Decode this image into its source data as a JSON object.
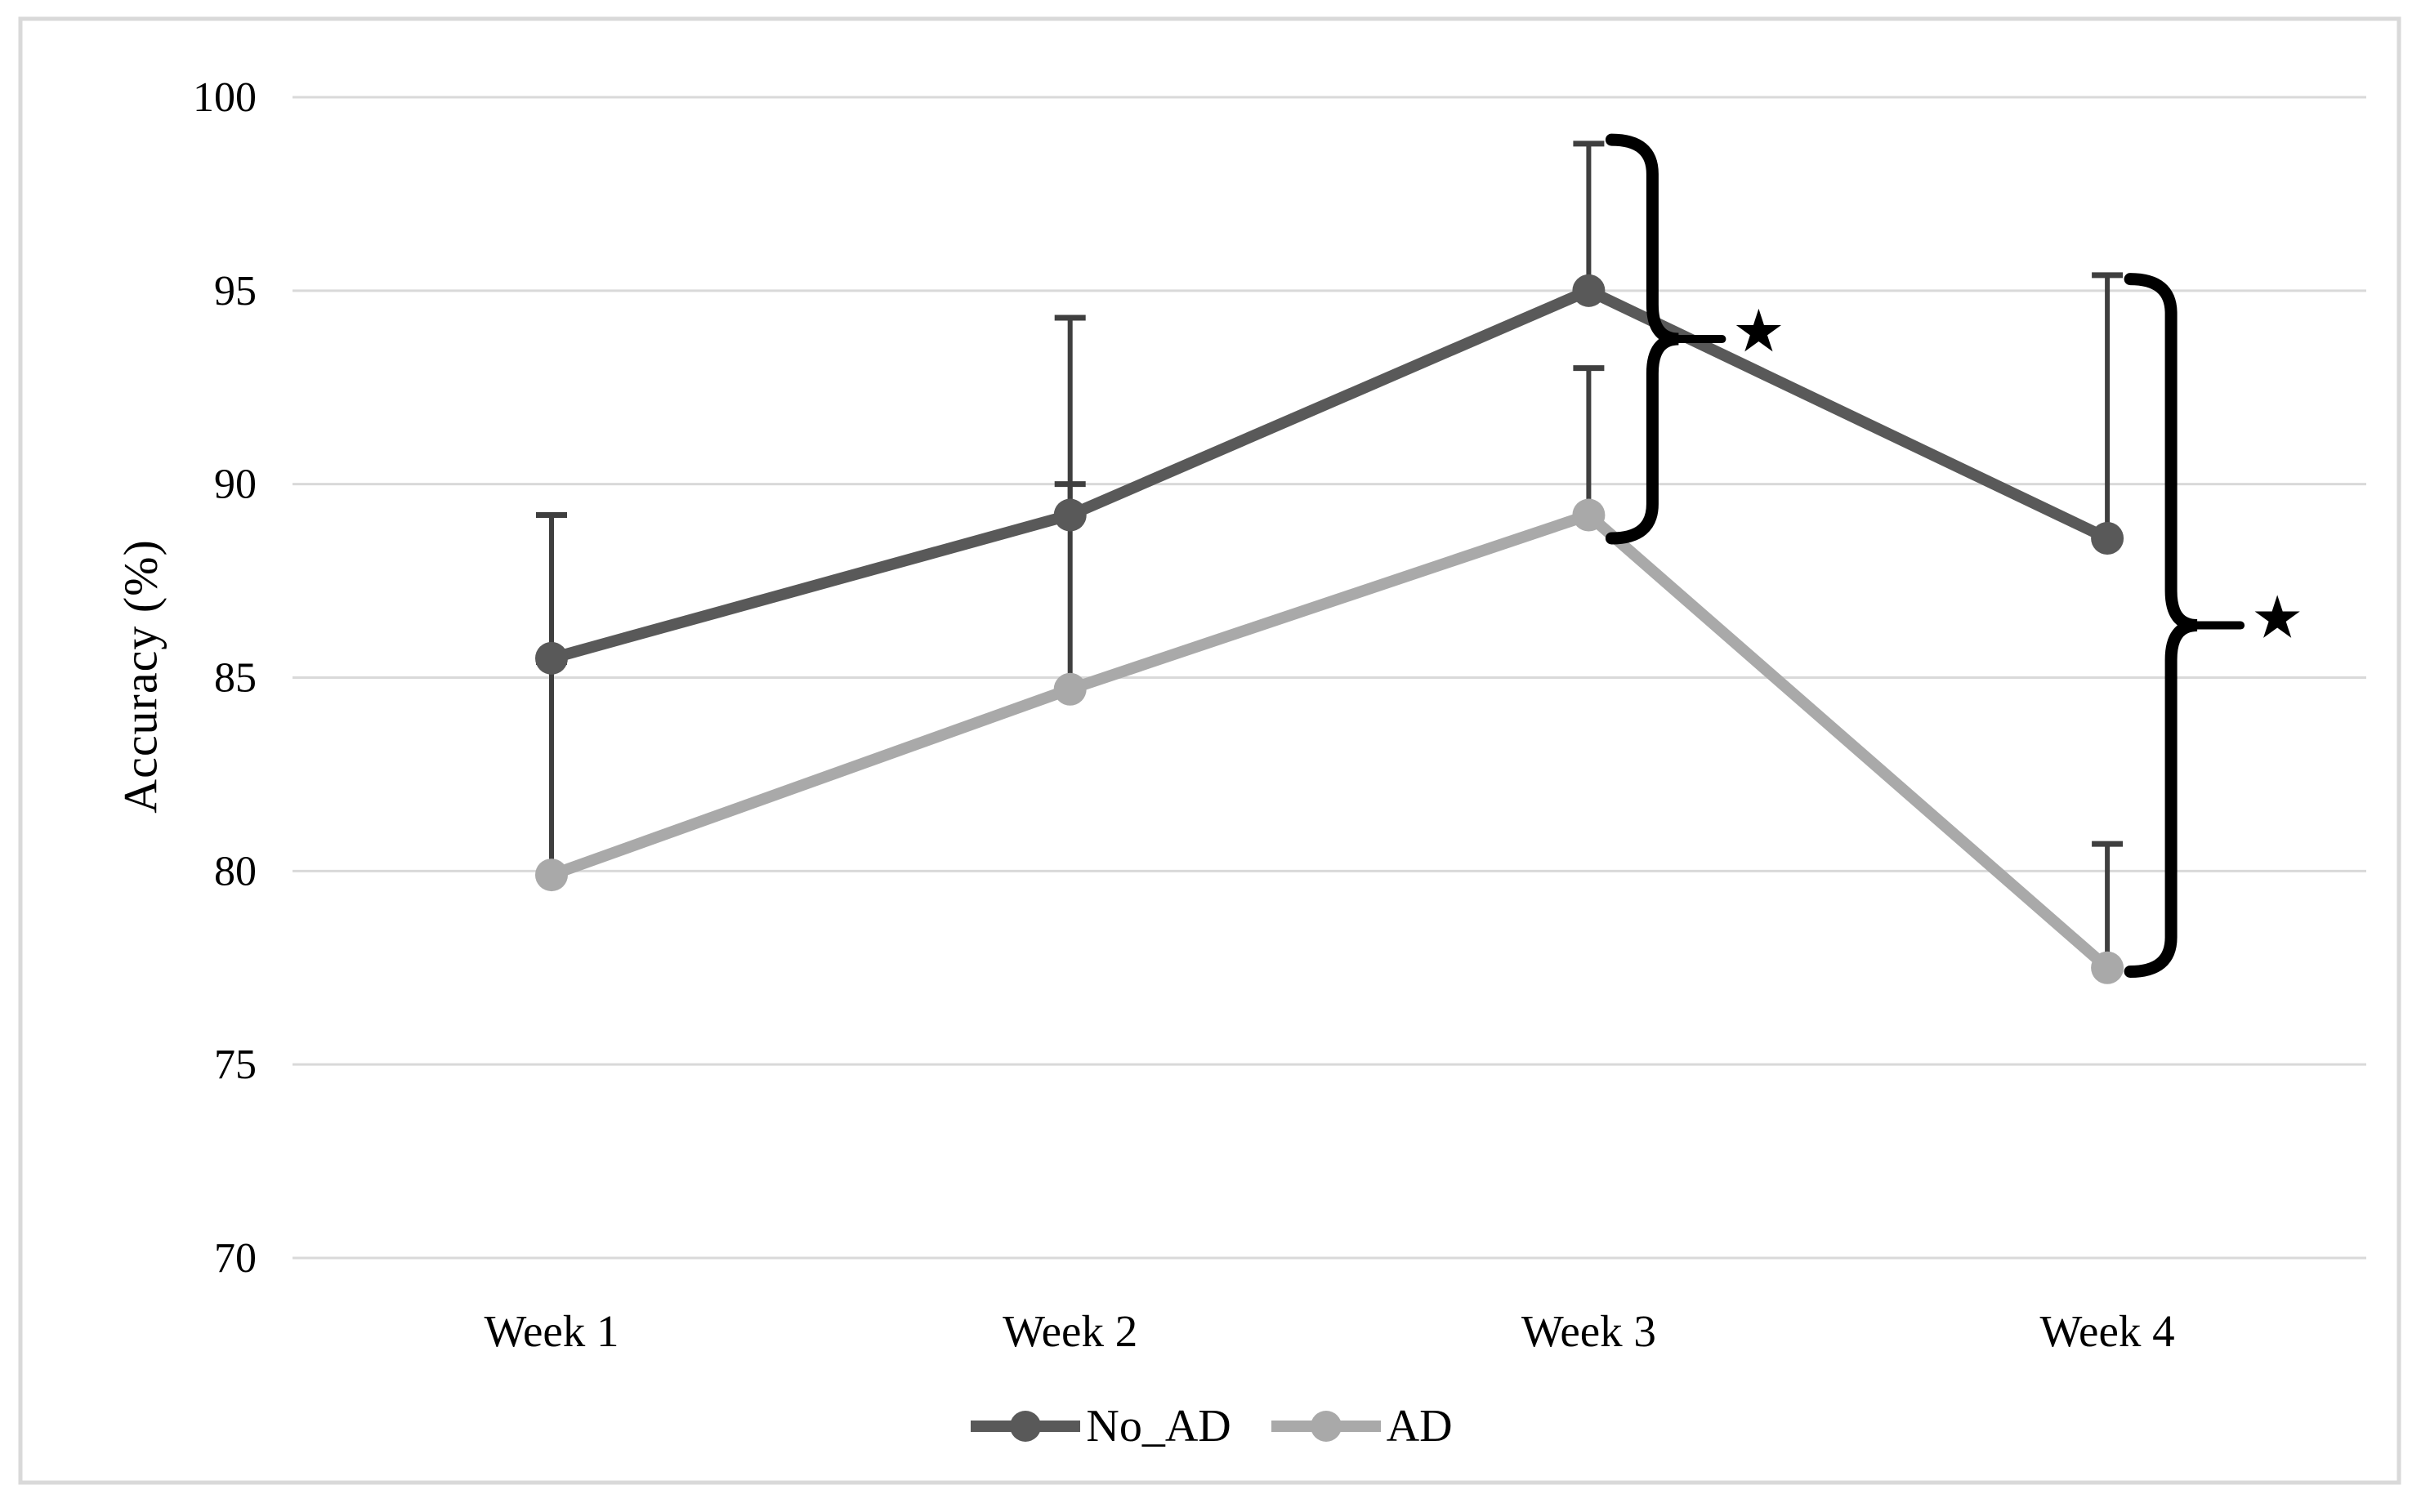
{
  "chart_data": {
    "type": "line",
    "title": "",
    "ylabel": "Accuracy (%)",
    "xlabel": "",
    "categories": [
      "Week 1",
      "Week 2",
      "Week 3",
      "Week 4"
    ],
    "y_axis": {
      "min": 70,
      "max": 100,
      "step": 5,
      "ticks": [
        100,
        95,
        90,
        85,
        80,
        75,
        70
      ]
    },
    "grid": "horizontal",
    "legend_position": "bottom",
    "gridline_color": "#d9d9d9",
    "frame_color": "#d9d9d9",
    "error_bar_color": "#3f3f3f",
    "annotation_color": "#000000",
    "series": [
      {
        "name": "No_AD",
        "color": "#595959",
        "marker": "circle",
        "values": [
          85.5,
          89.2,
          95.0,
          88.6
        ],
        "error_upper_values": [
          89.2,
          94.3,
          98.8,
          95.4
        ]
      },
      {
        "name": "AD",
        "color": "#a9a9a9",
        "marker": "circle",
        "values": [
          79.9,
          84.7,
          89.2,
          77.5
        ],
        "error_upper_values": [
          85.4,
          90.0,
          93.0,
          80.7
        ]
      }
    ],
    "annotations": [
      {
        "type": "brace",
        "at_category": "Week 3",
        "from_value": 98.9,
        "to_value": 88.6,
        "star": "★"
      },
      {
        "type": "brace",
        "at_category": "Week 4",
        "from_value": 95.3,
        "to_value": 77.4,
        "star": "★"
      }
    ]
  }
}
